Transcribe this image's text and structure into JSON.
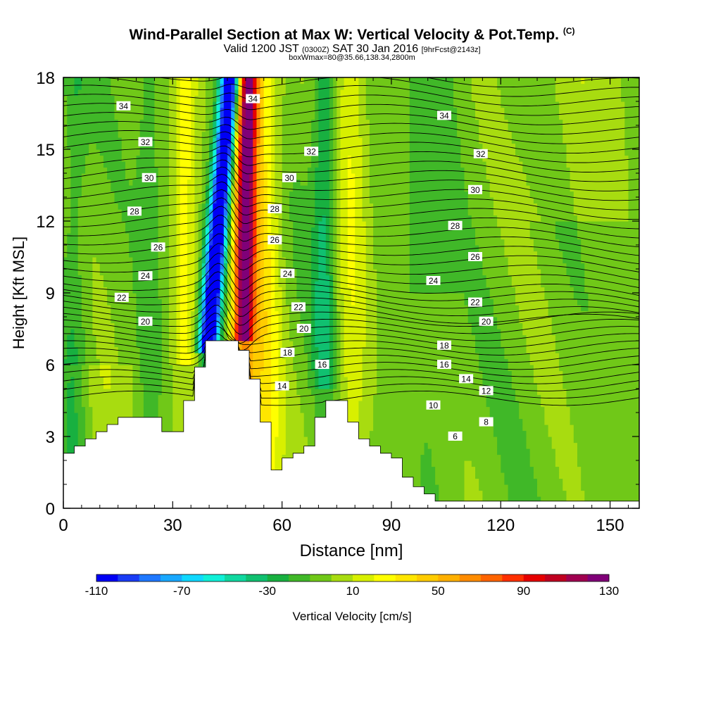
{
  "title": {
    "main": "Wind-Parallel Section at Max W: Vertical Velocity & Pot.Temp.",
    "copyright": "(C)",
    "valid_prefix": "Valid 1200 JST",
    "valid_utc": "(0300Z)",
    "valid_date": "SAT 30 Jan 2016",
    "forecast": "[9hrFcst@2143z]",
    "box_info": "boxWmax=80@35.66,138.34,2800m"
  },
  "chart_data": {
    "type": "heatmap",
    "xlabel": "Distance [nm]",
    "ylabel": "Height [Kft MSL]",
    "xlim": [
      0,
      158
    ],
    "ylim": [
      0,
      18
    ],
    "x_ticks": [
      0,
      30,
      60,
      90,
      120,
      150
    ],
    "y_ticks": [
      0,
      3,
      6,
      9,
      12,
      15,
      18
    ],
    "colorbar": {
      "label": "Vertical Velocity [cm/s]",
      "tick_labels": [
        "-110",
        "-70",
        "-30",
        "10",
        "50",
        "90",
        "130"
      ],
      "range": [
        -110,
        130
      ],
      "step": 10,
      "colors": [
        "#0000f5",
        "#1a3cf5",
        "#1f78ff",
        "#19a8ff",
        "#10d8ff",
        "#10f0d8",
        "#10d8a0",
        "#10c070",
        "#18b040",
        "#40b828",
        "#70c818",
        "#a8dc10",
        "#d8f000",
        "#ffff00",
        "#ffe600",
        "#ffcc00",
        "#ffb000",
        "#ff8c00",
        "#ff6400",
        "#ff3000",
        "#e60000",
        "#c00020",
        "#a00050",
        "#800078"
      ]
    },
    "contours": {
      "variable": "Potential Temperature",
      "labels": [
        {
          "text": "34",
          "x": 16.5,
          "y": 16.8
        },
        {
          "text": "34",
          "x": 52,
          "y": 17.1
        },
        {
          "text": "34",
          "x": 104.5,
          "y": 16.4
        },
        {
          "text": "32",
          "x": 22.5,
          "y": 15.3
        },
        {
          "text": "32",
          "x": 68,
          "y": 14.9
        },
        {
          "text": "32",
          "x": 114.5,
          "y": 14.8
        },
        {
          "text": "30",
          "x": 23.5,
          "y": 13.8
        },
        {
          "text": "30",
          "x": 62,
          "y": 13.8
        },
        {
          "text": "30",
          "x": 113,
          "y": 13.3
        },
        {
          "text": "28",
          "x": 19.5,
          "y": 12.4
        },
        {
          "text": "28",
          "x": 58,
          "y": 12.5
        },
        {
          "text": "28",
          "x": 107.5,
          "y": 11.8
        },
        {
          "text": "26",
          "x": 26,
          "y": 10.9
        },
        {
          "text": "26",
          "x": 58,
          "y": 11.2
        },
        {
          "text": "26",
          "x": 113,
          "y": 10.5
        },
        {
          "text": "24",
          "x": 22.5,
          "y": 9.7
        },
        {
          "text": "24",
          "x": 61.5,
          "y": 9.8
        },
        {
          "text": "24",
          "x": 101.5,
          "y": 9.5
        },
        {
          "text": "22",
          "x": 16,
          "y": 8.8
        },
        {
          "text": "22",
          "x": 64.5,
          "y": 8.4
        },
        {
          "text": "22",
          "x": 113,
          "y": 8.6
        },
        {
          "text": "20",
          "x": 22.5,
          "y": 7.8
        },
        {
          "text": "20",
          "x": 66,
          "y": 7.5
        },
        {
          "text": "20",
          "x": 116,
          "y": 7.8
        },
        {
          "text": "18",
          "x": 61.5,
          "y": 6.5
        },
        {
          "text": "18",
          "x": 104.5,
          "y": 6.8
        },
        {
          "text": "16",
          "x": 71,
          "y": 6.0
        },
        {
          "text": "16",
          "x": 104.5,
          "y": 6.0
        },
        {
          "text": "14",
          "x": 60,
          "y": 5.1
        },
        {
          "text": "14",
          "x": 110.5,
          "y": 5.4
        },
        {
          "text": "12",
          "x": 116,
          "y": 4.9
        },
        {
          "text": "10",
          "x": 101.5,
          "y": 4.3
        },
        {
          "text": "8",
          "x": 116,
          "y": 3.6
        },
        {
          "text": "6",
          "x": 107.5,
          "y": 3.0
        }
      ]
    },
    "terrain": {
      "x": [
        0,
        3,
        6,
        9,
        12,
        15,
        18,
        21,
        24,
        27,
        30,
        33,
        36,
        39,
        42,
        45,
        48,
        51,
        54,
        57,
        60,
        63,
        66,
        69,
        72,
        75,
        78,
        81,
        84,
        87,
        90,
        93,
        96,
        99,
        102,
        105,
        120,
        158
      ],
      "y": [
        2.3,
        2.6,
        2.9,
        3.2,
        3.5,
        3.8,
        3.8,
        3.8,
        3.8,
        3.2,
        3.2,
        4.5,
        5.9,
        7.0,
        7.0,
        7.0,
        6.6,
        5.4,
        3.6,
        1.6,
        2.1,
        2.3,
        2.6,
        3.8,
        4.5,
        4.5,
        3.6,
        2.9,
        2.6,
        2.3,
        2.1,
        1.3,
        0.9,
        0.6,
        0.3,
        0.3,
        0.3,
        0.3
      ]
    }
  }
}
